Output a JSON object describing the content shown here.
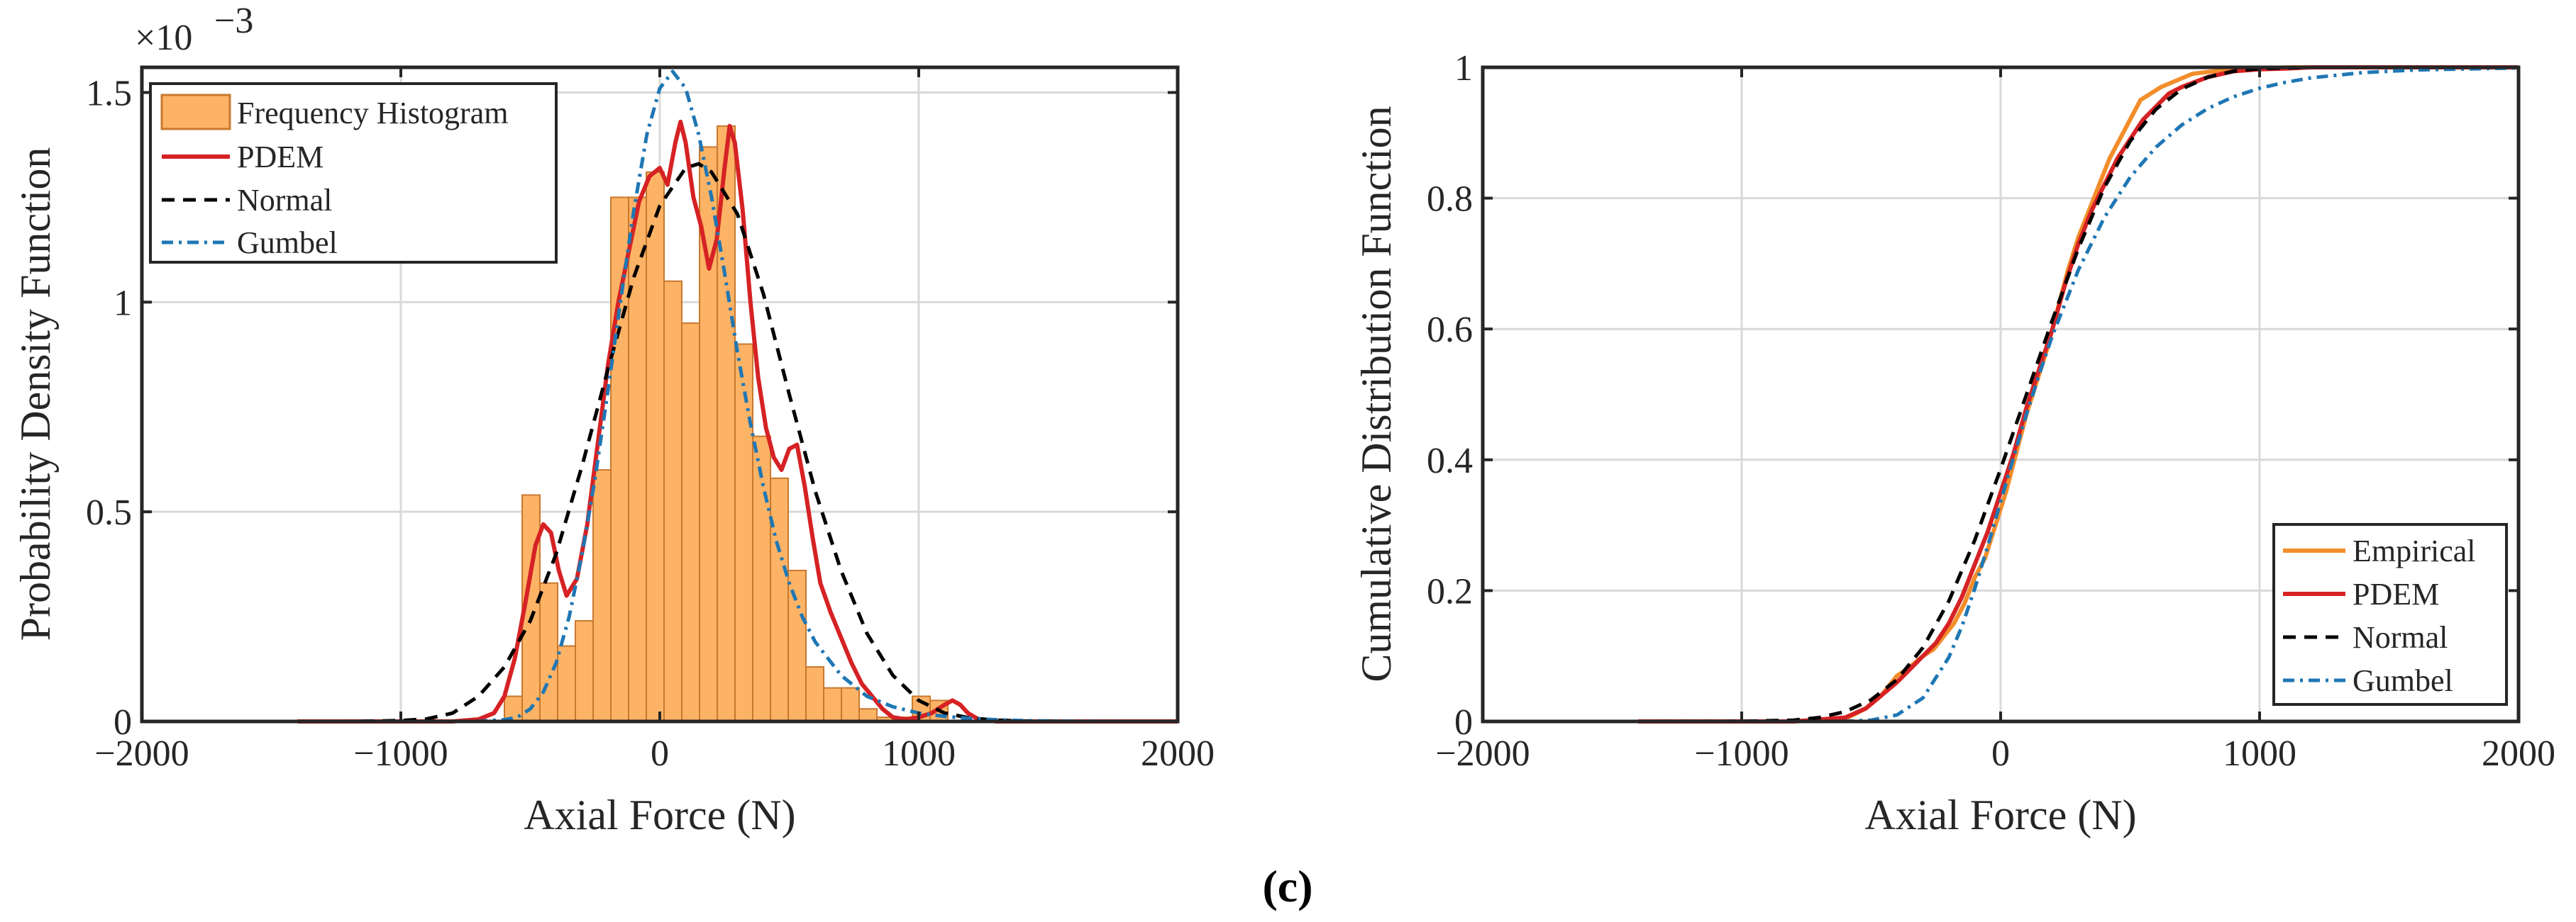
{
  "caption": "(c)",
  "colors": {
    "histogram_fill": "#FDB366",
    "histogram_edge": "#C8782E",
    "pdem": "#D62224",
    "normal": "#000000",
    "gumbel": "#1F77B4",
    "empirical": "#F28E2B",
    "grid": "#D9D9D9"
  },
  "chart_data": [
    {
      "type": "bar+line",
      "xlabel": "Axial Force (N)",
      "ylabel": "Probability Density Function",
      "xlim": [
        -2000,
        2000
      ],
      "ylim": [
        0,
        0.00156
      ],
      "xticks": [
        -2000,
        -1000,
        0,
        1000,
        2000
      ],
      "xtick_labels": [
        "−2000",
        "−1000",
        "0",
        "1000",
        "2000"
      ],
      "yticks": [
        0,
        0.0005,
        0.001,
        0.0015
      ],
      "ytick_labels": [
        "0",
        "0.5",
        "1",
        "1.5"
      ],
      "exponent_base": "×10",
      "exponent_power": "−3",
      "grid": true,
      "legend_position": "top-left",
      "legend": [
        "Frequency Histogram",
        "PDEM",
        "Normal",
        "Gumbel"
      ],
      "histogram": {
        "name": "Frequency Histogram",
        "bin_width": 68.5,
        "bin_starts": [
          -600,
          -531.5,
          -463,
          -394.5,
          -326,
          -257.5,
          -189,
          -120.5,
          -52,
          16.5,
          85,
          153.5,
          222,
          290.5,
          359,
          427.5,
          496,
          564.5,
          633,
          701.5,
          770,
          838.5,
          907,
          975.5,
          1044
        ],
        "values": [
          6e-05,
          0.00054,
          0.00033,
          0.00018,
          0.00024,
          0.0006,
          0.00125,
          0.00125,
          0.00131,
          0.00105,
          0.00095,
          0.00137,
          0.00142,
          0.0009,
          0.00068,
          0.00058,
          0.00036,
          0.00013,
          8e-05,
          8e-05,
          3e-05,
          1e-05,
          1e-05,
          6e-05,
          5e-05
        ]
      },
      "series": [
        {
          "name": "PDEM",
          "x": [
            -1400,
            -800,
            -700,
            -640,
            -600,
            -560,
            -520,
            -480,
            -450,
            -420,
            -390,
            -360,
            -320,
            -280,
            -240,
            -200,
            -160,
            -120,
            -80,
            -40,
            0,
            30,
            60,
            80,
            100,
            130,
            160,
            190,
            220,
            250,
            270,
            290,
            320,
            350,
            380,
            410,
            440,
            470,
            500,
            530,
            560,
            590,
            620,
            660,
            700,
            740,
            780,
            820,
            860,
            900,
            950,
            1000,
            1050,
            1100,
            1130,
            1160,
            1190,
            1230,
            1300,
            1500,
            2000
          ],
          "y": [
            0,
            0,
            5e-06,
            2e-05,
            6e-05,
            0.00015,
            0.00028,
            0.00042,
            0.00047,
            0.00045,
            0.00036,
            0.0003,
            0.00034,
            0.00047,
            0.00066,
            0.00085,
            0.001,
            0.00112,
            0.00124,
            0.0013,
            0.00132,
            0.00128,
            0.00138,
            0.00143,
            0.00138,
            0.00125,
            0.00118,
            0.00108,
            0.00115,
            0.00132,
            0.00142,
            0.00138,
            0.00122,
            0.001,
            0.00082,
            0.0007,
            0.00063,
            0.0006,
            0.00065,
            0.00066,
            0.00056,
            0.00044,
            0.00033,
            0.00026,
            0.0002,
            0.00014,
            9e-05,
            6e-05,
            3e-05,
            1e-05,
            5e-06,
            1e-05,
            2e-05,
            4e-05,
            5e-05,
            4e-05,
            2e-05,
            5e-06,
            0,
            0,
            0
          ]
        },
        {
          "name": "Normal",
          "x": [
            -1400,
            -1200,
            -1000,
            -900,
            -800,
            -700,
            -600,
            -500,
            -400,
            -300,
            -200,
            -100,
            0,
            100,
            150,
            200,
            300,
            400,
            500,
            600,
            700,
            800,
            900,
            1000,
            1100,
            1200,
            1300,
            1400,
            1600,
            1800,
            2000
          ],
          "y": [
            0,
            0,
            2e-06,
            6e-06,
            2e-05,
            6e-05,
            0.00013,
            0.00024,
            0.0004,
            0.00061,
            0.00084,
            0.00106,
            0.00123,
            0.00132,
            0.00133,
            0.00131,
            0.00121,
            0.00102,
            0.00078,
            0.00055,
            0.00036,
            0.00021,
            0.00011,
            5e-05,
            2e-05,
            8e-06,
            3e-06,
            1e-06,
            0,
            0,
            0
          ]
        },
        {
          "name": "Gumbel",
          "x": [
            -1400,
            -800,
            -700,
            -600,
            -550,
            -500,
            -450,
            -400,
            -350,
            -300,
            -250,
            -200,
            -150,
            -100,
            -50,
            0,
            50,
            100,
            150,
            200,
            250,
            300,
            350,
            400,
            450,
            500,
            550,
            600,
            700,
            800,
            900,
            1000,
            1100,
            1200,
            1300,
            1400,
            1600,
            1800,
            2000
          ],
          "y": [
            0,
            0,
            5e-07,
            4e-06,
            1e-05,
            3e-05,
            7e-05,
            0.00014,
            0.00025,
            0.0004,
            0.00058,
            0.00079,
            0.00101,
            0.00122,
            0.0014,
            0.00151,
            0.00155,
            0.00151,
            0.0014,
            0.00125,
            0.00107,
            0.00088,
            0.00071,
            0.00056,
            0.00043,
            0.00033,
            0.00025,
            0.00019,
            0.00011,
            6e-05,
            3.5e-05,
            2e-05,
            1.2e-05,
            7e-06,
            4e-06,
            2e-06,
            5e-07,
            0,
            0
          ]
        }
      ]
    },
    {
      "type": "line",
      "xlabel": "Axial Force (N)",
      "ylabel": "Cumulative Distribution Function",
      "xlim": [
        -2000,
        2000
      ],
      "ylim": [
        0,
        1
      ],
      "xticks": [
        -2000,
        -1000,
        0,
        1000,
        2000
      ],
      "xtick_labels": [
        "−2000",
        "−1000",
        "0",
        "1000",
        "2000"
      ],
      "yticks": [
        0,
        0.2,
        0.4,
        0.6,
        0.8,
        1
      ],
      "ytick_labels": [
        "0",
        "0.2",
        "0.4",
        "0.6",
        "0.8",
        "1"
      ],
      "grid": true,
      "legend_position": "bottom-right",
      "legend": [
        "Empirical",
        "PDEM",
        "Normal",
        "Gumbel"
      ],
      "series": [
        {
          "name": "Empirical",
          "x": [
            -1400,
            -800,
            -600,
            -520,
            -460,
            -400,
            -360,
            -330,
            -300,
            -260,
            -220,
            -180,
            -140,
            -100,
            -60,
            -20,
            20,
            60,
            100,
            140,
            180,
            220,
            260,
            300,
            340,
            380,
            420,
            460,
            500,
            540,
            580,
            620,
            680,
            740,
            800,
            880,
            960,
            1040,
            1120,
            1200,
            2000
          ],
          "y": [
            0,
            0,
            0.004,
            0.02,
            0.04,
            0.07,
            0.08,
            0.09,
            0.1,
            0.11,
            0.13,
            0.15,
            0.18,
            0.22,
            0.25,
            0.3,
            0.35,
            0.41,
            0.47,
            0.52,
            0.57,
            0.63,
            0.69,
            0.74,
            0.78,
            0.82,
            0.86,
            0.89,
            0.92,
            0.95,
            0.96,
            0.97,
            0.98,
            0.99,
            0.993,
            0.996,
            0.998,
            0.999,
            1.0,
            1.0,
            1.0
          ]
        },
        {
          "name": "PDEM",
          "x": [
            -1400,
            -800,
            -600,
            -520,
            -460,
            -400,
            -350,
            -300,
            -250,
            -200,
            -150,
            -100,
            -50,
            0,
            50,
            100,
            150,
            200,
            250,
            300,
            350,
            400,
            450,
            500,
            550,
            600,
            650,
            700,
            800,
            900,
            1000,
            1100,
            1200,
            2000
          ],
          "y": [
            0,
            0,
            0.006,
            0.02,
            0.04,
            0.06,
            0.08,
            0.1,
            0.12,
            0.15,
            0.19,
            0.24,
            0.29,
            0.35,
            0.41,
            0.48,
            0.54,
            0.6,
            0.67,
            0.73,
            0.78,
            0.82,
            0.86,
            0.89,
            0.92,
            0.94,
            0.96,
            0.97,
            0.985,
            0.994,
            0.997,
            0.998,
            1.0,
            1.0
          ]
        },
        {
          "name": "Normal",
          "x": [
            -1400,
            -1000,
            -800,
            -700,
            -600,
            -500,
            -400,
            -300,
            -200,
            -100,
            0,
            100,
            200,
            300,
            400,
            500,
            600,
            700,
            800,
            900,
            1000,
            1100,
            1200,
            2000
          ],
          "y": [
            0,
            0.0002,
            0.002,
            0.006,
            0.015,
            0.033,
            0.064,
            0.113,
            0.184,
            0.277,
            0.386,
            0.5,
            0.614,
            0.723,
            0.816,
            0.887,
            0.936,
            0.967,
            0.985,
            0.994,
            0.998,
            0.999,
            1.0,
            1.0
          ]
        },
        {
          "name": "Gumbel",
          "x": [
            -1400,
            -700,
            -600,
            -500,
            -400,
            -300,
            -200,
            -150,
            -100,
            -50,
            0,
            50,
            100,
            150,
            200,
            300,
            400,
            500,
            600,
            700,
            800,
            900,
            1000,
            1100,
            1200,
            1400,
            1600,
            2000
          ],
          "y": [
            0,
            0,
            0.0002,
            0.002,
            0.01,
            0.036,
            0.098,
            0.145,
            0.203,
            0.268,
            0.336,
            0.404,
            0.47,
            0.532,
            0.59,
            0.69,
            0.77,
            0.832,
            0.878,
            0.912,
            0.937,
            0.955,
            0.968,
            0.977,
            0.984,
            0.992,
            0.996,
            0.999
          ]
        }
      ]
    }
  ]
}
